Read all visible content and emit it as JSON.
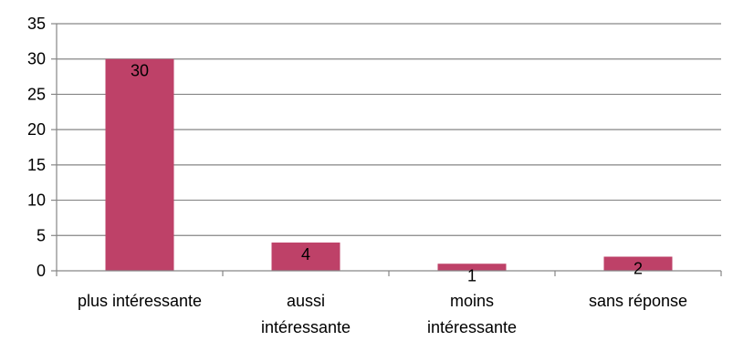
{
  "chart_data": {
    "type": "bar",
    "categories": [
      [
        "plus intéressante"
      ],
      [
        "aussi",
        "intéressante"
      ],
      [
        "moins",
        "intéressante"
      ],
      [
        "sans réponse"
      ]
    ],
    "values": [
      30,
      4,
      1,
      2
    ],
    "data_labels": [
      "30",
      "4",
      "1",
      "2"
    ],
    "ylim": [
      0,
      35
    ],
    "yticks": [
      0,
      5,
      10,
      15,
      20,
      25,
      30,
      35
    ],
    "ytick_labels": [
      "0",
      "5",
      "10",
      "15",
      "20",
      "25",
      "30",
      "35"
    ],
    "grid": true,
    "legend": "none",
    "title": "",
    "xlabel": "",
    "ylabel": "",
    "colors": {
      "bar": "#BE4168",
      "gridline": "#868686",
      "axis": "#868686"
    }
  }
}
